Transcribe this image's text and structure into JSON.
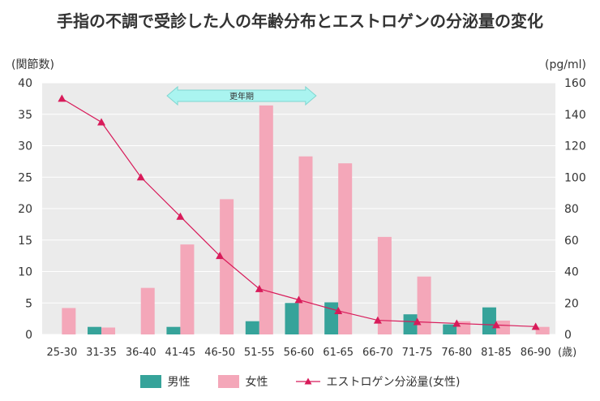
{
  "title": "手指の不調で受診した人の年齢分布とエストロゲンの分泌量の変化",
  "colors": {
    "male": "#36a39a",
    "female": "#f4a7b9",
    "estrogen": "#d81b5a",
    "plot_bg": "#ebebeb",
    "menopause_arrow": "#aaf4f0",
    "menopause_border": "#7fd6d0"
  },
  "chart_data": {
    "type": "bar",
    "categories": [
      "25-30",
      "31-35",
      "36-40",
      "41-45",
      "46-50",
      "51-55",
      "56-60",
      "61-65",
      "66-70",
      "71-75",
      "76-80",
      "81-85",
      "86-90"
    ],
    "x_unit": "(歳)",
    "ylabel_left": "(関節数)",
    "ylabel_right": "(pg/ml)",
    "ylim_left": [
      0,
      40
    ],
    "yticks_left": [
      0,
      5,
      10,
      15,
      20,
      25,
      30,
      35,
      40
    ],
    "ylim_right": [
      0,
      160
    ],
    "yticks_right": [
      0,
      20,
      40,
      60,
      80,
      100,
      120,
      140,
      160
    ],
    "grid": "horizontal",
    "legend_position": "bottom",
    "series": [
      {
        "name": "男性",
        "axis": "left",
        "type": "bar",
        "values": [
          0,
          1.2,
          0,
          1.2,
          0,
          2.1,
          5,
          5.1,
          0,
          3.2,
          1.6,
          4.3,
          0
        ]
      },
      {
        "name": "女性",
        "axis": "left",
        "type": "bar",
        "values": [
          4.2,
          1.1,
          7.4,
          14.3,
          21.5,
          36.4,
          28.3,
          27.2,
          15.5,
          9.2,
          2.1,
          2.2,
          1.2
        ]
      },
      {
        "name": "エストロゲン分泌量(女性)",
        "axis": "right",
        "type": "line",
        "values": [
          150,
          135,
          100,
          75,
          50,
          29,
          22,
          15,
          9,
          8,
          7,
          6,
          5
        ]
      }
    ],
    "annotations": [
      {
        "text": "更年期",
        "from_category": "41-45",
        "to_category": "56-60"
      }
    ]
  }
}
